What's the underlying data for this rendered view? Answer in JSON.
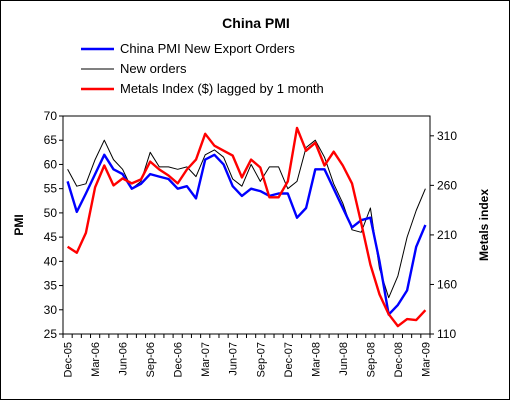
{
  "chart_data": {
    "type": "line",
    "title": "China PMI",
    "ylabel": "PMI",
    "y2label": "Metals index",
    "ylim": [
      25,
      70
    ],
    "y2lim": [
      110,
      330
    ],
    "yticks": [
      25,
      30,
      35,
      40,
      45,
      50,
      55,
      60,
      65,
      70
    ],
    "y2ticks": [
      110,
      160,
      210,
      260,
      310
    ],
    "xtick_labels": [
      "Dec-05",
      "Mar-06",
      "Jun-06",
      "Sep-06",
      "Dec-06",
      "Mar-07",
      "Jun-07",
      "Sep-07",
      "Dec-07",
      "Mar-08",
      "Jun-08",
      "Sep-08",
      "Dec-08",
      "Mar-09"
    ],
    "x": [
      "Dec-05",
      "Jan-06",
      "Feb-06",
      "Mar-06",
      "Apr-06",
      "May-06",
      "Jun-06",
      "Jul-06",
      "Aug-06",
      "Sep-06",
      "Oct-06",
      "Nov-06",
      "Dec-06",
      "Jan-07",
      "Feb-07",
      "Mar-07",
      "Apr-07",
      "May-07",
      "Jun-07",
      "Jul-07",
      "Aug-07",
      "Sep-07",
      "Oct-07",
      "Nov-07",
      "Dec-07",
      "Jan-08",
      "Feb-08",
      "Mar-08",
      "Apr-08",
      "May-08",
      "Jun-08",
      "Jul-08",
      "Aug-08",
      "Sep-08",
      "Oct-08",
      "Nov-08",
      "Dec-08",
      "Jan-09",
      "Feb-09",
      "Mar-09"
    ],
    "legend": {
      "placement": "top"
    },
    "series": [
      {
        "name": "China PMI New Export Orders",
        "axis": "left",
        "color": "#0000ff",
        "values": [
          56.5,
          50.2,
          54.0,
          58.0,
          62.0,
          59.0,
          58.0,
          55.0,
          56.0,
          58.0,
          57.5,
          57.0,
          55.0,
          55.5,
          53.0,
          61.0,
          62.0,
          60.0,
          55.5,
          53.5,
          55.0,
          54.5,
          53.5,
          54.0,
          54.0,
          49.0,
          51.0,
          59.0,
          59.0,
          55.0,
          51.0,
          47.0,
          48.5,
          49.0,
          40.0,
          29.0,
          31.0,
          34.0,
          43.0,
          47.5
        ]
      },
      {
        "name": "New orders",
        "axis": "left",
        "color": "#000000",
        "values": [
          59.0,
          55.5,
          56.0,
          61.0,
          65.0,
          61.0,
          59.0,
          55.0,
          56.5,
          62.5,
          59.5,
          59.5,
          59.0,
          59.5,
          57.5,
          62.0,
          63.0,
          61.5,
          57.0,
          55.5,
          60.0,
          56.5,
          59.5,
          59.5,
          55.0,
          56.5,
          63.5,
          65.0,
          61.5,
          56.0,
          52.0,
          46.5,
          46.0,
          51.0,
          38.5,
          32.5,
          37.0,
          45.0,
          50.5,
          55.0
        ]
      },
      {
        "name": "Metals Index ($) lagged by 1 month",
        "axis": "right",
        "color": "#ff0000",
        "values": [
          198,
          192,
          212,
          258,
          280,
          260,
          267,
          262,
          266,
          284,
          276,
          270,
          262,
          276,
          286,
          312,
          300,
          295,
          290,
          268,
          286,
          278,
          248,
          248,
          264,
          318,
          295,
          303,
          280,
          294,
          280,
          262,
          222,
          180,
          150,
          130,
          118,
          125,
          124,
          134
        ]
      }
    ]
  }
}
